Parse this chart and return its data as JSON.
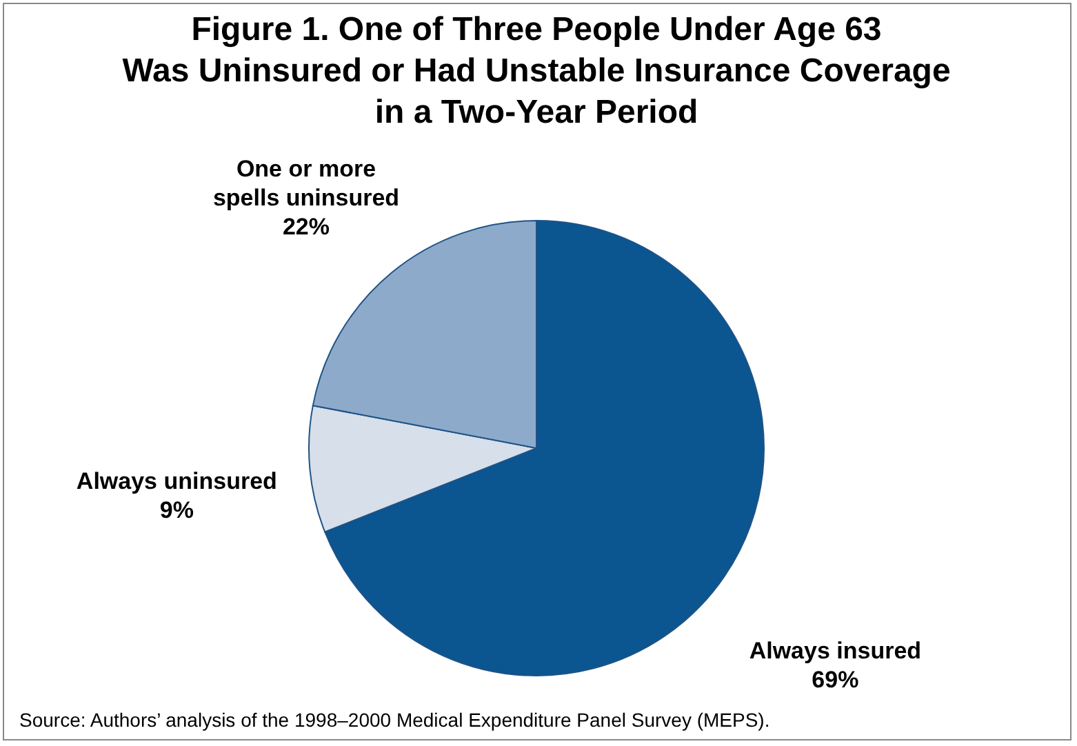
{
  "chart_data": {
    "type": "pie",
    "title": "Figure 1. One of Three People Under Age 63\nWas Uninsured or Had Unstable Insurance Coverage\nin a Two-Year Period",
    "categories": [
      "Always insured",
      "Always uninsured",
      "One or more\nspells uninsured"
    ],
    "values": [
      69,
      9,
      22
    ],
    "value_labels": [
      "69%",
      "9%",
      "22%"
    ],
    "colors": [
      "#0b5591",
      "#d6dfea",
      "#8eaacb"
    ],
    "legend": false,
    "annotations": [
      "Source: Authors’ analysis of the 1998–2000 Medical Expenditure Panel Survey (MEPS)."
    ]
  }
}
